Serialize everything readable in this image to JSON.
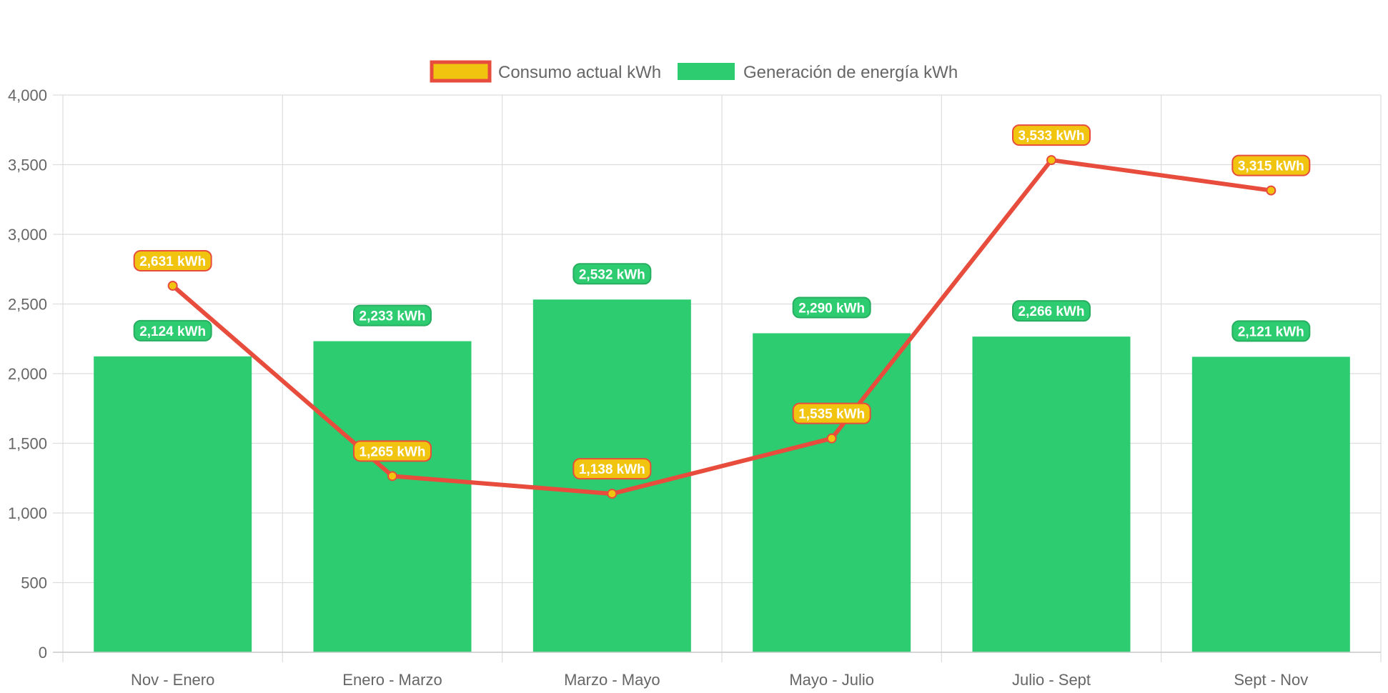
{
  "colors": {
    "bar_fill": "#2ecc71",
    "bar_label_bg": "#2ecc71",
    "bar_label_border": "#27ae60",
    "line_stroke": "#e74c3c",
    "line_point_fill": "#f1c40f",
    "line_label_bg": "#f1c40f",
    "line_label_border": "#e74c3c",
    "grid": "#dddddd",
    "tick_text": "#666666"
  },
  "chart_data": {
    "type": "bar",
    "categories": [
      "Nov - Enero",
      "Enero - Marzo",
      "Marzo - Mayo",
      "Mayo - Julio",
      "Julio - Sept",
      "Sept - Nov"
    ],
    "series": [
      {
        "name": "Consumo actual kWh",
        "type": "line",
        "values": [
          2631,
          1265,
          1138,
          1535,
          3533,
          3315
        ],
        "labels": [
          "2,631 kWh",
          "1,265 kWh",
          "1,138 kWh",
          "1,535 kWh",
          "3,533 kWh",
          "3,315 kWh"
        ]
      },
      {
        "name": "Generación de energía kWh",
        "type": "bar",
        "values": [
          2124,
          2233,
          2532,
          2290,
          2266,
          2121
        ],
        "labels": [
          "2,124 kWh",
          "2,233 kWh",
          "2,532 kWh",
          "2,290 kWh",
          "2,266 kWh",
          "2,121 kWh"
        ]
      }
    ],
    "ylim": [
      0,
      4000
    ],
    "yticks": [
      "0",
      "500",
      "1,000",
      "1,500",
      "2,000",
      "2,500",
      "3,000",
      "3,500",
      "4,000"
    ],
    "grid": true,
    "legend_position": "top"
  }
}
